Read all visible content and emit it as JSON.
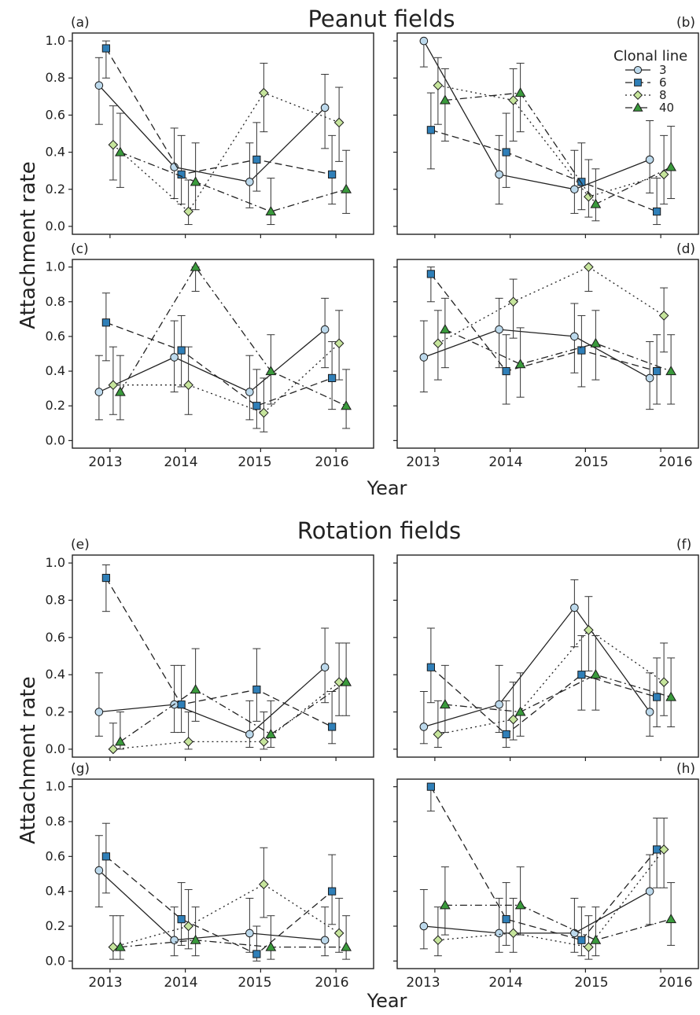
{
  "chart_data": {
    "type": "line",
    "sections": [
      {
        "title": "Peanut fields",
        "ylabel": "Attachment rate",
        "xlabel": "Year"
      },
      {
        "title": "Rotation fields",
        "ylabel": "Attachment rate",
        "xlabel": "Year"
      }
    ],
    "x": [
      2013,
      2014,
      2015,
      2016
    ],
    "x_tick_labels": [
      "2013",
      "2014",
      "2015",
      "2016"
    ],
    "ylim": [
      0,
      1
    ],
    "y_ticks": [
      "0.0",
      "0.2",
      "0.4",
      "0.6",
      "0.8",
      "1.0"
    ],
    "grid": false,
    "legend": {
      "title": "Clonal line",
      "placement": "top-right of panel (b)",
      "entries": [
        "3",
        "6",
        "8",
        "40"
      ]
    },
    "series_styles": [
      {
        "name": "3",
        "marker": "circle",
        "line": "solid",
        "color": "#bcd9ec"
      },
      {
        "name": "6",
        "marker": "square",
        "line": "dashed",
        "color": "#2f7fb8"
      },
      {
        "name": "8",
        "marker": "diamond",
        "line": "dotted",
        "color": "#c6e59c"
      },
      {
        "name": "40",
        "marker": "triangle",
        "line": "dashdot",
        "color": "#3a9a3c"
      }
    ],
    "panels": [
      {
        "label": "(a)",
        "series": [
          {
            "name": "3",
            "values": [
              0.76,
              0.32,
              0.24,
              0.64
            ],
            "lower": [
              0.55,
              0.15,
              0.1,
              0.42
            ],
            "upper": [
              0.91,
              0.53,
              0.45,
              0.82
            ]
          },
          {
            "name": "6",
            "values": [
              0.96,
              0.28,
              0.36,
              0.28
            ],
            "lower": [
              0.8,
              0.12,
              0.19,
              0.12
            ],
            "upper": [
              1.0,
              0.49,
              0.56,
              0.49
            ]
          },
          {
            "name": "8",
            "values": [
              0.44,
              0.08,
              0.72,
              0.56
            ],
            "lower": [
              0.25,
              0.01,
              0.51,
              0.35
            ],
            "upper": [
              0.65,
              0.25,
              0.88,
              0.75
            ]
          },
          {
            "name": "40",
            "values": [
              0.4,
              0.24,
              0.08,
              0.2
            ],
            "lower": [
              0.21,
              0.09,
              0.01,
              0.07
            ],
            "upper": [
              0.61,
              0.45,
              0.26,
              0.41
            ]
          }
        ]
      },
      {
        "label": "(b)",
        "series": [
          {
            "name": "3",
            "values": [
              1.0,
              0.28,
              0.2,
              0.36
            ],
            "lower": [
              0.86,
              0.12,
              0.07,
              0.18
            ],
            "upper": [
              1.0,
              0.49,
              0.41,
              0.57
            ]
          },
          {
            "name": "6",
            "values": [
              0.52,
              0.4,
              0.24,
              0.08
            ],
            "lower": [
              0.31,
              0.21,
              0.09,
              0.01
            ],
            "upper": [
              0.72,
              0.61,
              0.45,
              0.26
            ]
          },
          {
            "name": "8",
            "values": [
              0.76,
              0.68,
              0.16,
              0.28
            ],
            "lower": [
              0.55,
              0.46,
              0.05,
              0.12
            ],
            "upper": [
              0.91,
              0.85,
              0.36,
              0.49
            ]
          },
          {
            "name": "40",
            "values": [
              0.68,
              0.72,
              0.12,
              0.32
            ],
            "lower": [
              0.46,
              0.51,
              0.03,
              0.15
            ],
            "upper": [
              0.85,
              0.88,
              0.31,
              0.54
            ]
          }
        ]
      },
      {
        "label": "(c)",
        "series": [
          {
            "name": "3",
            "values": [
              0.28,
              0.48,
              0.28,
              0.64
            ],
            "lower": [
              0.12,
              0.28,
              0.12,
              0.42
            ],
            "upper": [
              0.49,
              0.69,
              0.49,
              0.82
            ]
          },
          {
            "name": "6",
            "values": [
              0.68,
              0.52,
              0.2,
              0.36
            ],
            "lower": [
              0.46,
              0.31,
              0.07,
              0.18
            ],
            "upper": [
              0.85,
              0.72,
              0.41,
              0.57
            ]
          },
          {
            "name": "8",
            "values": [
              0.32,
              0.32,
              0.16,
              0.56
            ],
            "lower": [
              0.15,
              0.15,
              0.05,
              0.35
            ],
            "upper": [
              0.54,
              0.54,
              0.36,
              0.75
            ]
          },
          {
            "name": "40",
            "values": [
              0.28,
              1.0,
              0.4,
              0.2
            ],
            "lower": [
              0.12,
              0.86,
              0.21,
              0.07
            ],
            "upper": [
              0.49,
              1.0,
              0.61,
              0.41
            ]
          }
        ]
      },
      {
        "label": "(d)",
        "series": [
          {
            "name": "3",
            "values": [
              0.48,
              0.64,
              0.6,
              0.36
            ],
            "lower": [
              0.28,
              0.42,
              0.39,
              0.18
            ],
            "upper": [
              0.69,
              0.82,
              0.79,
              0.57
            ]
          },
          {
            "name": "6",
            "values": [
              0.96,
              0.4,
              0.52,
              0.4
            ],
            "lower": [
              0.8,
              0.21,
              0.31,
              0.21
            ],
            "upper": [
              1.0,
              0.61,
              0.72,
              0.61
            ]
          },
          {
            "name": "8",
            "values": [
              0.56,
              0.8,
              1.0,
              0.72
            ],
            "lower": [
              0.35,
              0.59,
              0.86,
              0.51
            ],
            "upper": [
              0.75,
              0.93,
              1.0,
              0.88
            ]
          },
          {
            "name": "40",
            "values": [
              0.64,
              0.44,
              0.56,
              0.4
            ],
            "lower": [
              0.42,
              0.25,
              0.35,
              0.21
            ],
            "upper": [
              0.82,
              0.65,
              0.75,
              0.61
            ]
          }
        ]
      },
      {
        "label": "(e)",
        "series": [
          {
            "name": "3",
            "values": [
              0.2,
              0.24,
              0.08,
              0.44
            ],
            "lower": [
              0.07,
              0.09,
              0.01,
              0.25
            ],
            "upper": [
              0.41,
              0.45,
              0.26,
              0.65
            ]
          },
          {
            "name": "6",
            "values": [
              0.92,
              0.24,
              0.32,
              0.12
            ],
            "lower": [
              0.74,
              0.09,
              0.15,
              0.03
            ],
            "upper": [
              0.99,
              0.45,
              0.54,
              0.31
            ]
          },
          {
            "name": "8",
            "values": [
              0.0,
              0.04,
              0.04,
              0.36
            ],
            "lower": [
              0.0,
              0.0,
              0.0,
              0.18
            ],
            "upper": [
              0.14,
              0.2,
              0.2,
              0.57
            ]
          },
          {
            "name": "40",
            "values": [
              0.04,
              0.32,
              0.08,
              0.36
            ],
            "lower": [
              0.0,
              0.15,
              0.01,
              0.18
            ],
            "upper": [
              0.2,
              0.54,
              0.26,
              0.57
            ]
          }
        ]
      },
      {
        "label": "(f)",
        "series": [
          {
            "name": "3",
            "values": [
              0.12,
              0.24,
              0.76,
              0.2
            ],
            "lower": [
              0.03,
              0.09,
              0.55,
              0.07
            ],
            "upper": [
              0.31,
              0.45,
              0.91,
              0.41
            ]
          },
          {
            "name": "6",
            "values": [
              0.44,
              0.08,
              0.4,
              0.28
            ],
            "lower": [
              0.25,
              0.01,
              0.21,
              0.12
            ],
            "upper": [
              0.65,
              0.26,
              0.61,
              0.49
            ]
          },
          {
            "name": "8",
            "values": [
              0.08,
              0.16,
              0.64,
              0.36
            ],
            "lower": [
              0.01,
              0.05,
              0.42,
              0.18
            ],
            "upper": [
              0.26,
              0.36,
              0.82,
              0.57
            ]
          },
          {
            "name": "40",
            "values": [
              0.24,
              0.2,
              0.4,
              0.28
            ],
            "lower": [
              0.09,
              0.07,
              0.21,
              0.12
            ],
            "upper": [
              0.45,
              0.41,
              0.61,
              0.49
            ]
          }
        ]
      },
      {
        "label": "(g)",
        "series": [
          {
            "name": "3",
            "values": [
              0.52,
              0.12,
              0.16,
              0.12
            ],
            "lower": [
              0.31,
              0.03,
              0.05,
              0.03
            ],
            "upper": [
              0.72,
              0.31,
              0.36,
              0.31
            ]
          },
          {
            "name": "6",
            "values": [
              0.6,
              0.24,
              0.04,
              0.4
            ],
            "lower": [
              0.39,
              0.09,
              0.0,
              0.21
            ],
            "upper": [
              0.79,
              0.45,
              0.2,
              0.61
            ]
          },
          {
            "name": "8",
            "values": [
              0.08,
              0.2,
              0.44,
              0.16
            ],
            "lower": [
              0.01,
              0.07,
              0.25,
              0.05
            ],
            "upper": [
              0.26,
              0.41,
              0.65,
              0.36
            ]
          },
          {
            "name": "40",
            "values": [
              0.08,
              0.12,
              0.08,
              0.08
            ],
            "lower": [
              0.01,
              0.03,
              0.01,
              0.01
            ],
            "upper": [
              0.26,
              0.31,
              0.26,
              0.26
            ]
          }
        ]
      },
      {
        "label": "(h)",
        "series": [
          {
            "name": "3",
            "values": [
              0.2,
              0.16,
              0.16,
              0.4
            ],
            "lower": [
              0.07,
              0.05,
              0.05,
              0.21
            ],
            "upper": [
              0.41,
              0.36,
              0.36,
              0.61
            ]
          },
          {
            "name": "6",
            "values": [
              1.0,
              0.24,
              0.12,
              0.64
            ],
            "lower": [
              0.86,
              0.09,
              0.03,
              0.42
            ],
            "upper": [
              1.0,
              0.45,
              0.31,
              0.82
            ]
          },
          {
            "name": "8",
            "values": [
              0.12,
              0.16,
              0.08,
              0.64
            ],
            "lower": [
              0.03,
              0.05,
              0.01,
              0.42
            ],
            "upper": [
              0.31,
              0.36,
              0.26,
              0.82
            ]
          },
          {
            "name": "40",
            "values": [
              0.32,
              0.32,
              0.12,
              0.24
            ],
            "lower": [
              0.15,
              0.15,
              0.03,
              0.09
            ],
            "upper": [
              0.54,
              0.54,
              0.31,
              0.45
            ]
          }
        ]
      }
    ]
  }
}
